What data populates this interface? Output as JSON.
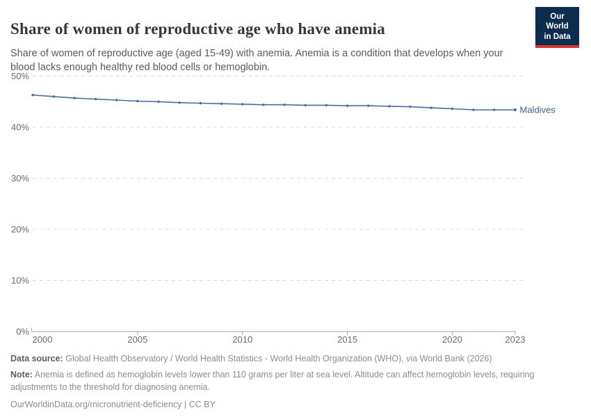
{
  "header": {
    "title": "Share of women of reproductive age who have anemia",
    "subtitle": "Share of women of reproductive age (aged 15-49) with anemia. Anemia is a condition that develops when your blood lacks enough healthy red blood cells or hemoglobin.",
    "logo": {
      "line1": "Our World",
      "line2": "in Data"
    }
  },
  "chart_data": {
    "type": "line",
    "title": "Share of women of reproductive age who have anemia",
    "x": [
      2000,
      2001,
      2002,
      2003,
      2004,
      2005,
      2006,
      2007,
      2008,
      2009,
      2010,
      2011,
      2012,
      2013,
      2014,
      2015,
      2016,
      2017,
      2018,
      2019,
      2020,
      2021,
      2022,
      2023
    ],
    "series": [
      {
        "name": "Maldives",
        "values": [
          46.3,
          46.0,
          45.7,
          45.5,
          45.3,
          45.1,
          45.0,
          44.8,
          44.7,
          44.6,
          44.5,
          44.4,
          44.4,
          44.3,
          44.3,
          44.2,
          44.2,
          44.1,
          44.0,
          43.8,
          43.6,
          43.4,
          43.4,
          43.4
        ]
      }
    ],
    "xlabel": "",
    "ylabel": "",
    "ylim": [
      0,
      50
    ],
    "xlim": [
      2000,
      2023
    ],
    "ytick_labels": [
      "0%",
      "10%",
      "20%",
      "30%",
      "40%",
      "50%"
    ],
    "ytick_values": [
      0,
      10,
      20,
      30,
      40,
      50
    ],
    "xtick_labels": [
      "2000",
      "2005",
      "2010",
      "2015",
      "2020",
      "2023"
    ],
    "xtick_values": [
      2000,
      2005,
      2010,
      2015,
      2020,
      2023
    ],
    "grid": "horizontal-dashed",
    "legend_position": "end-of-line",
    "end_label": "Maldives"
  },
  "colors": {
    "line": "#4c6a9c",
    "end_label_text": "#3d5c8f",
    "grid": "#dcdcdc",
    "axis": "#a3a3a3",
    "tick_text": "#6b6b6b",
    "title_text": "#373737",
    "subtitle_text": "#5a5a5a",
    "logo_bg": "#0d2d4f",
    "logo_bar": "#d8352e"
  },
  "footer": {
    "data_source_label": "Data source:",
    "data_source_text": "Global Health Observatory / World Health Statistics - World Health Organization (WHO), via World Bank (2026)",
    "note_label": "Note:",
    "note_text": "Anemia is defined as hemoglobin levels lower than 110 grams per liter at sea level. Altitude can affect hemoglobin levels, requiring adjustments to the threshold for diagnosing anemia.",
    "attribution": "OurWorldinData.org/micronutrient-deficiency | CC BY"
  }
}
